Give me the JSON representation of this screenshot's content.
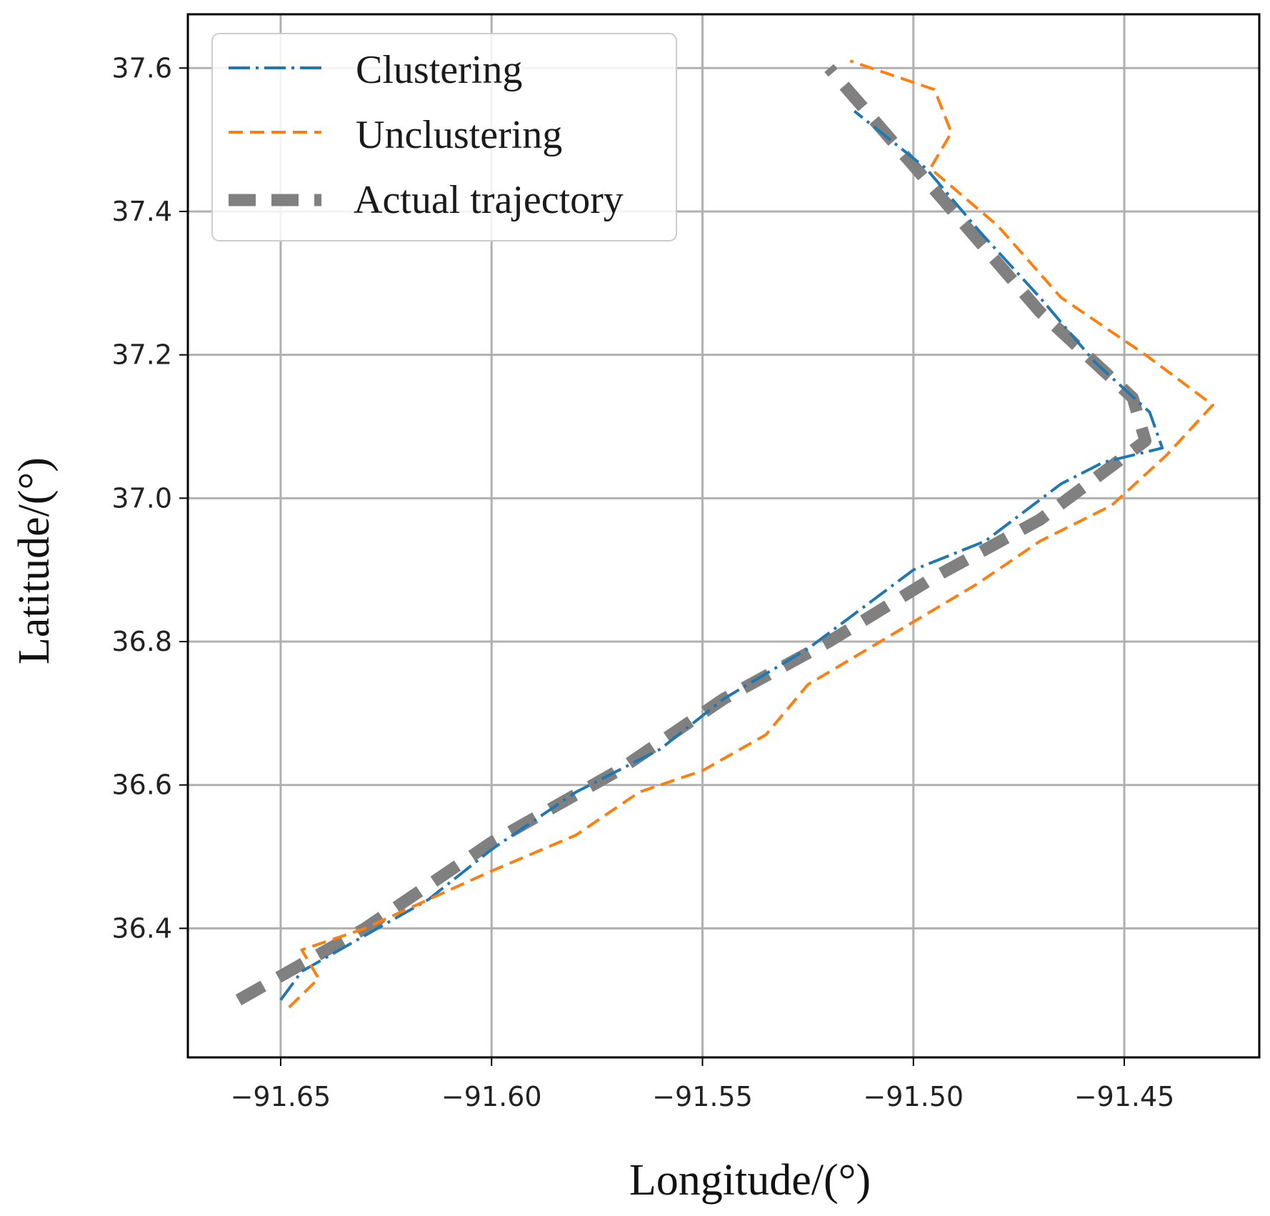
{
  "chart_data": {
    "type": "line",
    "title": "",
    "xlabel": "Longitude/(°)",
    "ylabel": "Latitude/(°)",
    "xlim": [
      -91.672,
      -91.418
    ],
    "ylim": [
      36.22,
      37.675
    ],
    "xticks": [
      -91.65,
      -91.6,
      -91.55,
      -91.5,
      -91.45
    ],
    "xtick_labels": [
      "−91.65",
      "−91.60",
      "−91.55",
      "−91.50",
      "−91.45"
    ],
    "yticks": [
      36.4,
      36.6,
      36.8,
      37.0,
      37.2,
      37.4,
      37.6
    ],
    "ytick_labels": [
      "36.4",
      "36.6",
      "36.8",
      "37.0",
      "37.2",
      "37.4",
      "37.6"
    ],
    "grid": true,
    "legend_position": "top-left",
    "series": [
      {
        "name": "Clustering",
        "color": "#1f77b4",
        "style": "dashdot",
        "points": [
          [
            -91.65,
            36.3
          ],
          [
            -91.645,
            36.34
          ],
          [
            -91.63,
            36.39
          ],
          [
            -91.615,
            36.44
          ],
          [
            -91.6,
            36.51
          ],
          [
            -91.58,
            36.59
          ],
          [
            -91.56,
            36.65
          ],
          [
            -91.545,
            36.72
          ],
          [
            -91.525,
            36.79
          ],
          [
            -91.5,
            36.9
          ],
          [
            -91.483,
            36.94
          ],
          [
            -91.465,
            37.02
          ],
          [
            -91.455,
            37.05
          ],
          [
            -91.441,
            37.07
          ],
          [
            -91.444,
            37.12
          ],
          [
            -91.457,
            37.19
          ],
          [
            -91.47,
            37.28
          ],
          [
            -91.484,
            37.37
          ],
          [
            -91.497,
            37.46
          ],
          [
            -91.514,
            37.54
          ]
        ]
      },
      {
        "name": "Unclustering",
        "color": "#ff7f0e",
        "style": "dashed",
        "points": [
          [
            -91.648,
            36.29
          ],
          [
            -91.641,
            36.33
          ],
          [
            -91.645,
            36.37
          ],
          [
            -91.63,
            36.4
          ],
          [
            -91.615,
            36.44
          ],
          [
            -91.6,
            36.48
          ],
          [
            -91.58,
            36.53
          ],
          [
            -91.565,
            36.59
          ],
          [
            -91.55,
            36.62
          ],
          [
            -91.535,
            36.67
          ],
          [
            -91.525,
            36.74
          ],
          [
            -91.505,
            36.81
          ],
          [
            -91.485,
            36.88
          ],
          [
            -91.47,
            36.94
          ],
          [
            -91.453,
            36.99
          ],
          [
            -91.44,
            37.06
          ],
          [
            -91.429,
            37.13
          ],
          [
            -91.445,
            37.2
          ],
          [
            -91.465,
            37.28
          ],
          [
            -91.48,
            37.38
          ],
          [
            -91.496,
            37.46
          ],
          [
            -91.491,
            37.51
          ],
          [
            -91.495,
            37.57
          ],
          [
            -91.515,
            37.61
          ]
        ]
      },
      {
        "name": "Actual trajectory",
        "color": "#808080",
        "style": "dashed-thick",
        "points": [
          [
            -91.66,
            36.3
          ],
          [
            -91.63,
            36.4
          ],
          [
            -91.6,
            36.52
          ],
          [
            -91.57,
            36.62
          ],
          [
            -91.545,
            36.72
          ],
          [
            -91.52,
            36.8
          ],
          [
            -91.495,
            36.89
          ],
          [
            -91.47,
            36.97
          ],
          [
            -91.445,
            37.08
          ],
          [
            -91.448,
            37.14
          ],
          [
            -91.47,
            37.26
          ],
          [
            -91.495,
            37.43
          ],
          [
            -91.52,
            37.6
          ]
        ]
      }
    ]
  }
}
